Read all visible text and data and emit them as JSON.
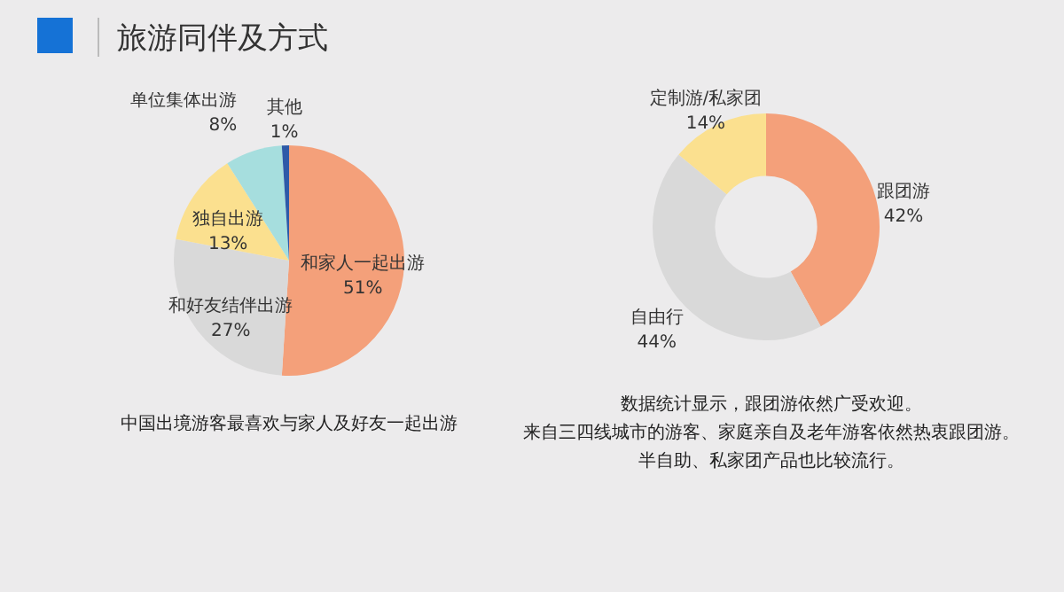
{
  "chart_data": [
    {
      "type": "pie",
      "title": "旅游同伴及方式",
      "categories": [
        "和家人一起出游",
        "和好友结伴出游",
        "独自出游",
        "单位集体出游",
        "其他"
      ],
      "values": [
        51,
        27,
        13,
        8,
        1
      ],
      "value_labels": [
        "51%",
        "27%",
        "13%",
        "8%",
        "1%"
      ],
      "colors": [
        "#f4a07a",
        "#d9d9d9",
        "#fbe08f",
        "#a6dede",
        "#2e5aa8"
      ],
      "annotations": [
        "中国出境游客最喜欢与家人及好友一起出游"
      ]
    },
    {
      "type": "donut",
      "categories": [
        "跟团游",
        "自由行",
        "定制游/私家团"
      ],
      "values": [
        42,
        44,
        14
      ],
      "value_labels": [
        "42%",
        "44%",
        "14%"
      ],
      "colors": [
        "#f4a07a",
        "#d9d9d9",
        "#fbe08f"
      ],
      "annotations": [
        "数据统计显示，跟团游依然广受欢迎。",
        "来自三四线城市的游客、家庭亲自及老年游客依然热衷跟团游。",
        "半自助、私家团产品也比较流行。"
      ]
    }
  ]
}
